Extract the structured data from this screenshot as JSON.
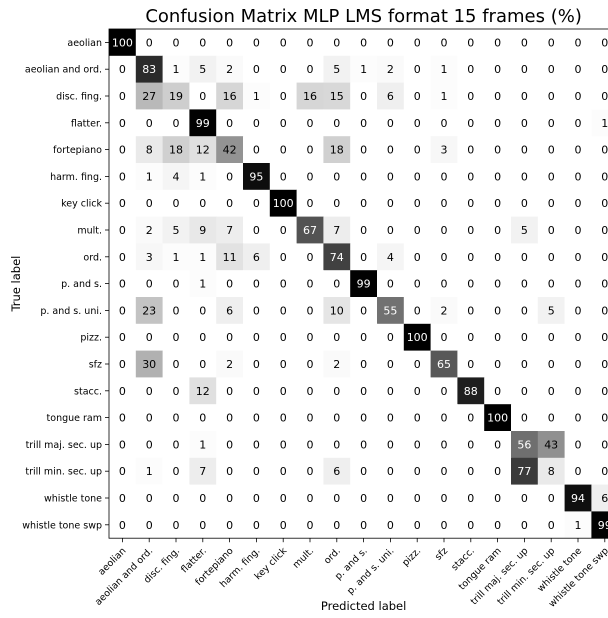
{
  "chart_data": {
    "type": "heatmap",
    "title": "Confusion Matrix MLP LMS format 15 frames (%)",
    "xlabel": "Predicted label",
    "ylabel": "True label",
    "labels": [
      "aeolian",
      "aeolian and ord.",
      "disc. fing.",
      "flatter.",
      "fortepiano",
      "harm. fing.",
      "key click",
      "mult.",
      "ord.",
      "p. and s.",
      "p. and s. uni.",
      "pizz.",
      "sfz",
      "stacc.",
      "tongue ram",
      "trill maj. sec. up",
      "trill min. sec. up",
      "whistle tone",
      "whistle tone swp"
    ],
    "values": [
      [
        100,
        0,
        0,
        0,
        0,
        0,
        0,
        0,
        0,
        0,
        0,
        0,
        0,
        0,
        0,
        0,
        0,
        0,
        0
      ],
      [
        0,
        83,
        1,
        5,
        2,
        0,
        0,
        0,
        5,
        1,
        2,
        0,
        1,
        0,
        0,
        0,
        0,
        0,
        0
      ],
      [
        0,
        27,
        19,
        0,
        16,
        1,
        0,
        16,
        15,
        0,
        6,
        0,
        1,
        0,
        0,
        0,
        0,
        0,
        0
      ],
      [
        0,
        0,
        0,
        99,
        0,
        0,
        0,
        0,
        0,
        0,
        0,
        0,
        0,
        0,
        0,
        0,
        0,
        0,
        1
      ],
      [
        0,
        8,
        18,
        12,
        42,
        0,
        0,
        0,
        18,
        0,
        0,
        0,
        3,
        0,
        0,
        0,
        0,
        0,
        0
      ],
      [
        0,
        1,
        4,
        1,
        0,
        95,
        0,
        0,
        0,
        0,
        0,
        0,
        0,
        0,
        0,
        0,
        0,
        0,
        0
      ],
      [
        0,
        0,
        0,
        0,
        0,
        0,
        100,
        0,
        0,
        0,
        0,
        0,
        0,
        0,
        0,
        0,
        0,
        0,
        0
      ],
      [
        0,
        2,
        5,
        9,
        7,
        0,
        0,
        67,
        7,
        0,
        0,
        0,
        0,
        0,
        0,
        5,
        0,
        0,
        0
      ],
      [
        0,
        3,
        1,
        1,
        11,
        6,
        0,
        0,
        74,
        0,
        4,
        0,
        0,
        0,
        0,
        0,
        0,
        0,
        0
      ],
      [
        0,
        0,
        0,
        1,
        0,
        0,
        0,
        0,
        0,
        99,
        0,
        0,
        0,
        0,
        0,
        0,
        0,
        0,
        0
      ],
      [
        0,
        23,
        0,
        0,
        6,
        0,
        0,
        0,
        10,
        0,
        55,
        0,
        2,
        0,
        0,
        0,
        5,
        0,
        0
      ],
      [
        0,
        0,
        0,
        0,
        0,
        0,
        0,
        0,
        0,
        0,
        0,
        100,
        0,
        0,
        0,
        0,
        0,
        0,
        0
      ],
      [
        0,
        30,
        0,
        0,
        2,
        0,
        0,
        0,
        2,
        0,
        0,
        0,
        65,
        0,
        0,
        0,
        0,
        0,
        0
      ],
      [
        0,
        0,
        0,
        12,
        0,
        0,
        0,
        0,
        0,
        0,
        0,
        0,
        0,
        88,
        0,
        0,
        0,
        0,
        0
      ],
      [
        0,
        0,
        0,
        0,
        0,
        0,
        0,
        0,
        0,
        0,
        0,
        0,
        0,
        0,
        100,
        0,
        0,
        0,
        0
      ],
      [
        0,
        0,
        0,
        1,
        0,
        0,
        0,
        0,
        0,
        0,
        0,
        0,
        0,
        0,
        0,
        56,
        43,
        0,
        0
      ],
      [
        0,
        1,
        0,
        7,
        0,
        0,
        0,
        0,
        6,
        0,
        0,
        0,
        0,
        0,
        0,
        77,
        8,
        0,
        0
      ],
      [
        0,
        0,
        0,
        0,
        0,
        0,
        0,
        0,
        0,
        0,
        0,
        0,
        0,
        0,
        0,
        0,
        0,
        94,
        6
      ],
      [
        0,
        0,
        0,
        0,
        0,
        0,
        0,
        0,
        0,
        0,
        0,
        0,
        0,
        0,
        0,
        0,
        0,
        1,
        99
      ]
    ],
    "value_range": [
      0,
      100
    ],
    "colormap": "Greys",
    "grid": false
  }
}
